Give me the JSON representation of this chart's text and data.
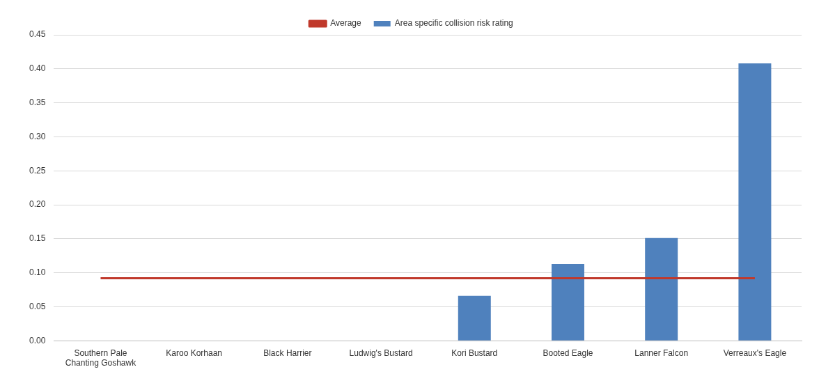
{
  "chart_data": {
    "type": "bar",
    "categories": [
      "Southern Pale Chanting Goshawk",
      "Karoo Korhaan",
      "Black Harrier",
      "Ludwig's Bustard",
      "Kori Bustard",
      "Booted Eagle",
      "Lanner Falcon",
      "Verreaux's Eagle"
    ],
    "series": [
      {
        "name": "Area specific collision risk rating",
        "color": "#4f81bd",
        "values": [
          0,
          0,
          0,
          0,
          0.066,
          0.113,
          0.151,
          0.408
        ]
      },
      {
        "name": "Average",
        "type": "line",
        "color": "#c0392b",
        "values": [
          0.092,
          0.092,
          0.092,
          0.092,
          0.092,
          0.092,
          0.092,
          0.092
        ]
      }
    ],
    "ylim": [
      0,
      0.45
    ],
    "yticks": [
      {
        "value": 0,
        "label": "0.00"
      },
      {
        "value": 0.05,
        "label": "0.05"
      },
      {
        "value": 0.1,
        "label": "0.10"
      },
      {
        "value": 0.15,
        "label": "0.15"
      },
      {
        "value": 0.2,
        "label": "0.20"
      },
      {
        "value": 0.25,
        "label": "0.25"
      },
      {
        "value": 0.3,
        "label": "0.30"
      },
      {
        "value": 0.35,
        "label": "0.35"
      },
      {
        "value": 0.4,
        "label": "0.40"
      },
      {
        "value": 0.45,
        "label": "0.45"
      }
    ],
    "grid": "y",
    "legend": "top",
    "marker": "none"
  }
}
